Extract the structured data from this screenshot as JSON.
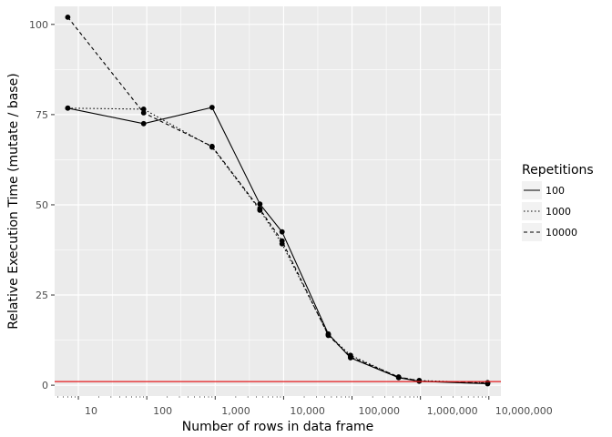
{
  "chart_data": {
    "type": "line",
    "xlabel": "Number of rows in data frame",
    "ylabel": "Relative Execution Time (mutate / base)",
    "x_scale": "log10",
    "x_tick_values": [
      10,
      100,
      1000,
      10000,
      100000,
      1000000,
      10000000
    ],
    "x_tick_labels": [
      "10",
      "100",
      "1,000",
      "10,000",
      "100,000",
      "1,000,000",
      "10,000,000"
    ],
    "xlim": [
      4.5,
      15000000
    ],
    "y_tick_values": [
      0,
      25,
      50,
      75,
      100
    ],
    "y_tick_labels": [
      "0",
      "25",
      "50",
      "75",
      "100"
    ],
    "ylim": [
      -3,
      105
    ],
    "grid": true,
    "background": "#ebebeb",
    "reference_line": {
      "y": 1,
      "color": "#e41a1c"
    },
    "legend": {
      "title": "Repetitions",
      "position": "right"
    },
    "x": [
      7,
      90,
      900,
      4500,
      9500,
      45000,
      95000,
      480000,
      960000,
      9600000
    ],
    "series": [
      {
        "name": "100",
        "linetype": "solid",
        "values": [
          76.8,
          72.5,
          77.0,
          50.2,
          42.5,
          14.2,
          7.6,
          2.1,
          1.1,
          0.4
        ]
      },
      {
        "name": "1000",
        "linetype": "dotted",
        "values": [
          76.8,
          76.5,
          66.0,
          48.5,
          39.2,
          14.0,
          8.3,
          2.2,
          1.3,
          0.7
        ]
      },
      {
        "name": "10000",
        "linetype": "dashed",
        "values": [
          102.0,
          75.5,
          66.2,
          48.8,
          40.0,
          13.8,
          7.9,
          2.3,
          1.2,
          0.6
        ]
      }
    ]
  }
}
